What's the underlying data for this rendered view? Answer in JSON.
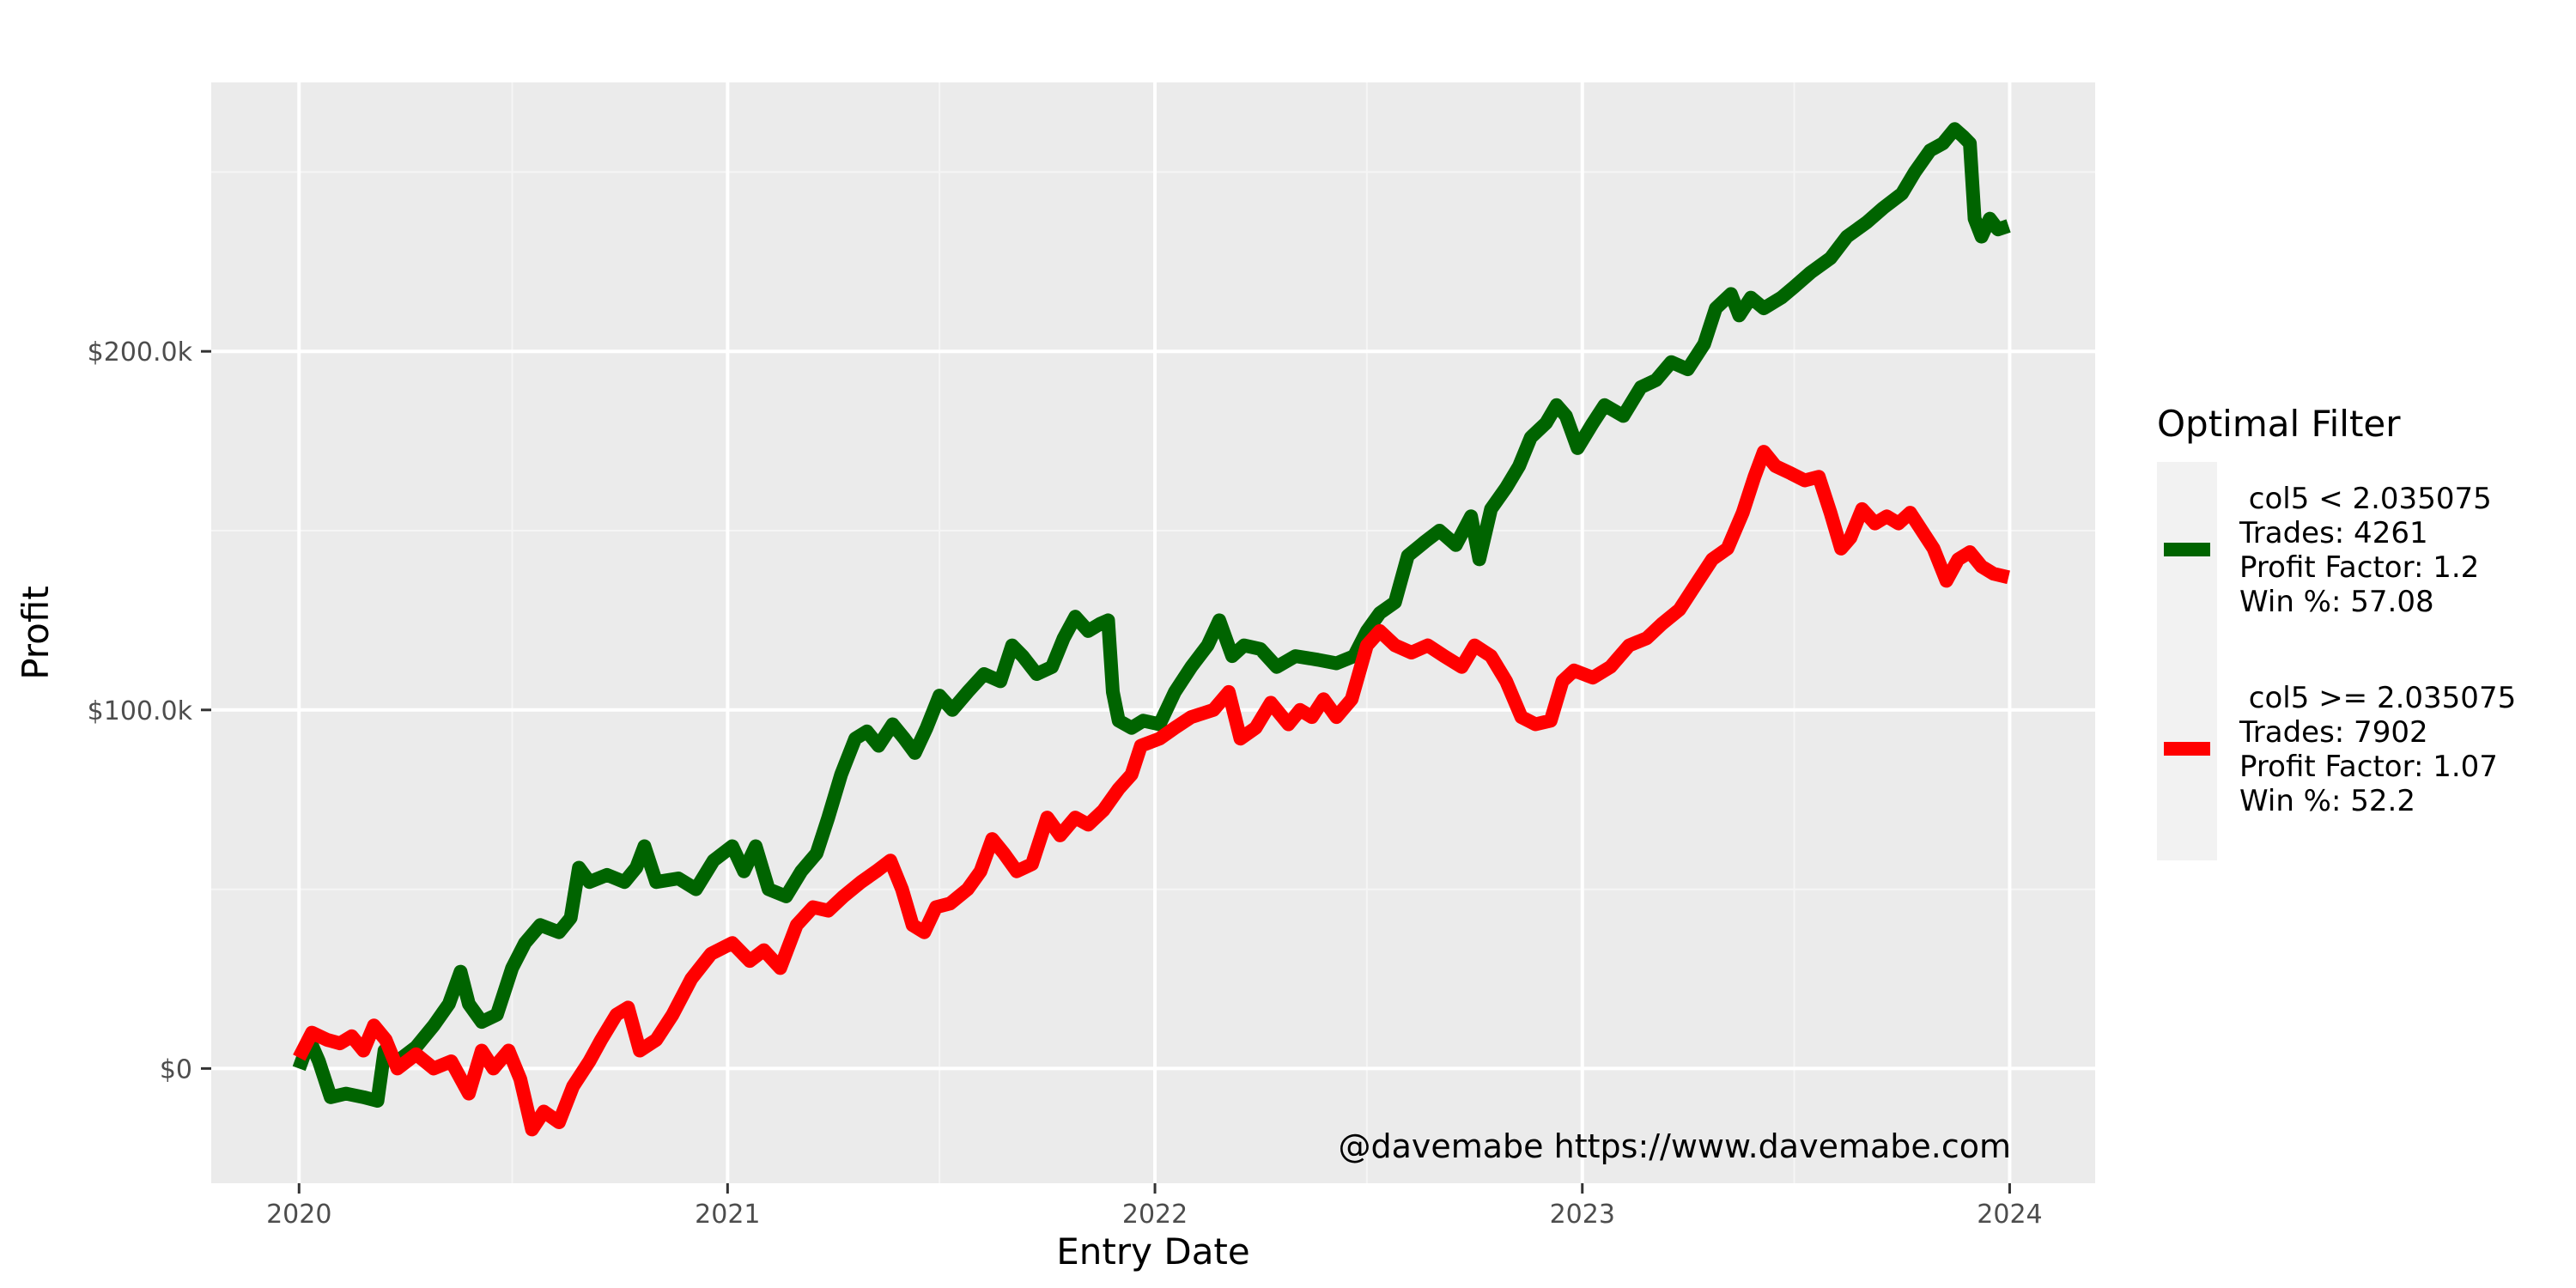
{
  "chart_data": {
    "type": "line",
    "xlabel": "Entry Date",
    "ylabel": "Profit",
    "caption": "@davemabe https://www.davemabe.com",
    "x_range": [
      "2019-10-18",
      "2024-03-14"
    ],
    "y_range": [
      -32000,
      275000
    ],
    "x_ticks": [
      {
        "value": "2020-01-01",
        "label": "2020"
      },
      {
        "value": "2021-01-01",
        "label": "2021"
      },
      {
        "value": "2022-01-01",
        "label": "2022"
      },
      {
        "value": "2023-01-01",
        "label": "2023"
      },
      {
        "value": "2024-01-01",
        "label": "2024"
      }
    ],
    "x_minor_ticks": [
      "2020-07-01",
      "2021-07-01",
      "2022-07-01",
      "2023-07-01"
    ],
    "y_ticks": [
      {
        "value": 0,
        "label": "$0"
      },
      {
        "value": 100000,
        "label": "$100.0k"
      },
      {
        "value": 200000,
        "label": "$200.0k"
      }
    ],
    "y_minor_ticks": [
      50000,
      150000,
      250000
    ],
    "grid": true,
    "legend": {
      "title": "Optimal Filter",
      "placement": "right",
      "entries": [
        {
          "lines": [
            " col5 < 2.035075",
            "Trades: 4261",
            "Profit Factor: 1.2",
            "Win %: 57.08"
          ],
          "color": "#006400"
        },
        {
          "lines": [
            " col5 >= 2.035075",
            "Trades: 7902",
            "Profit Factor: 1.07",
            "Win %: 52.2"
          ],
          "color": "#ff0000"
        }
      ]
    },
    "series": [
      {
        "name": "col5 < 2.035075",
        "color": "#006400",
        "points": [
          [
            "2020-01-01",
            0
          ],
          [
            "2020-01-10",
            8000
          ],
          [
            "2020-01-18",
            2000
          ],
          [
            "2020-01-28",
            -8000
          ],
          [
            "2020-02-10",
            -7000
          ],
          [
            "2020-02-25",
            -8000
          ],
          [
            "2020-03-08",
            -9000
          ],
          [
            "2020-03-14",
            5000
          ],
          [
            "2020-03-25",
            2000
          ],
          [
            "2020-04-10",
            6000
          ],
          [
            "2020-04-25",
            12000
          ],
          [
            "2020-05-08",
            18000
          ],
          [
            "2020-05-18",
            27000
          ],
          [
            "2020-05-25",
            18000
          ],
          [
            "2020-06-05",
            13000
          ],
          [
            "2020-06-18",
            15000
          ],
          [
            "2020-07-01",
            28000
          ],
          [
            "2020-07-12",
            35000
          ],
          [
            "2020-07-25",
            40000
          ],
          [
            "2020-08-10",
            38000
          ],
          [
            "2020-08-20",
            42000
          ],
          [
            "2020-08-27",
            56000
          ],
          [
            "2020-09-05",
            52000
          ],
          [
            "2020-09-20",
            54000
          ],
          [
            "2020-10-05",
            52000
          ],
          [
            "2020-10-15",
            56000
          ],
          [
            "2020-10-22",
            62000
          ],
          [
            "2020-11-01",
            52000
          ],
          [
            "2020-11-20",
            53000
          ],
          [
            "2020-12-05",
            50000
          ],
          [
            "2020-12-20",
            58000
          ],
          [
            "2021-01-05",
            62000
          ],
          [
            "2021-01-15",
            55000
          ],
          [
            "2021-01-25",
            62000
          ],
          [
            "2021-02-05",
            50000
          ],
          [
            "2021-02-20",
            48000
          ],
          [
            "2021-03-05",
            55000
          ],
          [
            "2021-03-18",
            60000
          ],
          [
            "2021-03-28",
            70000
          ],
          [
            "2021-04-08",
            82000
          ],
          [
            "2021-04-20",
            92000
          ],
          [
            "2021-04-30",
            94000
          ],
          [
            "2021-05-10",
            90000
          ],
          [
            "2021-05-22",
            96000
          ],
          [
            "2021-06-01",
            92000
          ],
          [
            "2021-06-10",
            88000
          ],
          [
            "2021-06-20",
            95000
          ],
          [
            "2021-07-01",
            104000
          ],
          [
            "2021-07-12",
            100000
          ],
          [
            "2021-07-25",
            105000
          ],
          [
            "2021-08-08",
            110000
          ],
          [
            "2021-08-22",
            108000
          ],
          [
            "2021-09-01",
            118000
          ],
          [
            "2021-09-10",
            115000
          ],
          [
            "2021-09-22",
            110000
          ],
          [
            "2021-10-05",
            112000
          ],
          [
            "2021-10-15",
            120000
          ],
          [
            "2021-10-25",
            126000
          ],
          [
            "2021-11-05",
            122000
          ],
          [
            "2021-11-15",
            124000
          ],
          [
            "2021-11-22",
            125000
          ],
          [
            "2021-11-26",
            105000
          ],
          [
            "2021-12-01",
            97000
          ],
          [
            "2021-12-12",
            95000
          ],
          [
            "2021-12-22",
            97000
          ],
          [
            "2022-01-05",
            96000
          ],
          [
            "2022-01-18",
            105000
          ],
          [
            "2022-02-01",
            112000
          ],
          [
            "2022-02-15",
            118000
          ],
          [
            "2022-02-25",
            125000
          ],
          [
            "2022-03-08",
            115000
          ],
          [
            "2022-03-18",
            118000
          ],
          [
            "2022-04-01",
            117000
          ],
          [
            "2022-04-15",
            112000
          ],
          [
            "2022-05-01",
            115000
          ],
          [
            "2022-05-20",
            114000
          ],
          [
            "2022-06-05",
            113000
          ],
          [
            "2022-06-20",
            115000
          ],
          [
            "2022-07-01",
            122000
          ],
          [
            "2022-07-12",
            127000
          ],
          [
            "2022-07-25",
            130000
          ],
          [
            "2022-08-05",
            143000
          ],
          [
            "2022-08-20",
            147000
          ],
          [
            "2022-09-01",
            150000
          ],
          [
            "2022-09-15",
            146000
          ],
          [
            "2022-09-28",
            154000
          ],
          [
            "2022-10-05",
            142000
          ],
          [
            "2022-10-15",
            156000
          ],
          [
            "2022-10-28",
            162000
          ],
          [
            "2022-11-08",
            168000
          ],
          [
            "2022-11-18",
            176000
          ],
          [
            "2022-12-01",
            180000
          ],
          [
            "2022-12-10",
            185000
          ],
          [
            "2022-12-18",
            182000
          ],
          [
            "2022-12-28",
            173000
          ],
          [
            "2023-01-10",
            180000
          ],
          [
            "2023-01-20",
            185000
          ],
          [
            "2023-02-05",
            182000
          ],
          [
            "2023-02-20",
            190000
          ],
          [
            "2023-03-05",
            192000
          ],
          [
            "2023-03-18",
            197000
          ],
          [
            "2023-04-01",
            195000
          ],
          [
            "2023-04-15",
            202000
          ],
          [
            "2023-04-25",
            212000
          ],
          [
            "2023-05-08",
            216000
          ],
          [
            "2023-05-15",
            210000
          ],
          [
            "2023-05-25",
            215000
          ],
          [
            "2023-06-05",
            212000
          ],
          [
            "2023-06-20",
            215000
          ],
          [
            "2023-07-01",
            218000
          ],
          [
            "2023-07-15",
            222000
          ],
          [
            "2023-08-01",
            226000
          ],
          [
            "2023-08-15",
            232000
          ],
          [
            "2023-09-01",
            236000
          ],
          [
            "2023-09-15",
            240000
          ],
          [
            "2023-10-01",
            244000
          ],
          [
            "2023-10-12",
            250000
          ],
          [
            "2023-10-25",
            256000
          ],
          [
            "2023-11-05",
            258000
          ],
          [
            "2023-11-15",
            262000
          ],
          [
            "2023-11-22",
            260000
          ],
          [
            "2023-11-28",
            258000
          ],
          [
            "2023-12-02",
            237000
          ],
          [
            "2023-12-08",
            232000
          ],
          [
            "2023-12-15",
            237000
          ],
          [
            "2023-12-22",
            234000
          ],
          [
            "2023-12-31",
            235000
          ]
        ]
      },
      {
        "name": "col5 >= 2.035075",
        "color": "#ff0000",
        "points": [
          [
            "2020-01-01",
            3000
          ],
          [
            "2020-01-12",
            10000
          ],
          [
            "2020-01-25",
            8000
          ],
          [
            "2020-02-05",
            7000
          ],
          [
            "2020-02-15",
            9000
          ],
          [
            "2020-02-25",
            5000
          ],
          [
            "2020-03-05",
            12000
          ],
          [
            "2020-03-15",
            8000
          ],
          [
            "2020-03-25",
            0
          ],
          [
            "2020-04-10",
            4000
          ],
          [
            "2020-04-25",
            0
          ],
          [
            "2020-05-10",
            2000
          ],
          [
            "2020-05-25",
            -7000
          ],
          [
            "2020-06-05",
            5000
          ],
          [
            "2020-06-15",
            0
          ],
          [
            "2020-06-28",
            5000
          ],
          [
            "2020-07-08",
            -3000
          ],
          [
            "2020-07-18",
            -17000
          ],
          [
            "2020-07-28",
            -12000
          ],
          [
            "2020-08-10",
            -15000
          ],
          [
            "2020-08-22",
            -5000
          ],
          [
            "2020-09-05",
            2000
          ],
          [
            "2020-09-15",
            8000
          ],
          [
            "2020-09-28",
            15000
          ],
          [
            "2020-10-08",
            17000
          ],
          [
            "2020-10-18",
            5000
          ],
          [
            "2020-11-01",
            8000
          ],
          [
            "2020-11-15",
            15000
          ],
          [
            "2020-12-01",
            25000
          ],
          [
            "2020-12-18",
            32000
          ],
          [
            "2021-01-05",
            35000
          ],
          [
            "2021-01-20",
            30000
          ],
          [
            "2021-02-01",
            33000
          ],
          [
            "2021-02-15",
            28000
          ],
          [
            "2021-03-01",
            40000
          ],
          [
            "2021-03-15",
            45000
          ],
          [
            "2021-03-28",
            44000
          ],
          [
            "2021-04-10",
            48000
          ],
          [
            "2021-04-25",
            52000
          ],
          [
            "2021-05-08",
            55000
          ],
          [
            "2021-05-20",
            58000
          ],
          [
            "2021-05-30",
            50000
          ],
          [
            "2021-06-08",
            40000
          ],
          [
            "2021-06-18",
            38000
          ],
          [
            "2021-06-28",
            45000
          ],
          [
            "2021-07-10",
            46000
          ],
          [
            "2021-07-25",
            50000
          ],
          [
            "2021-08-05",
            55000
          ],
          [
            "2021-08-15",
            64000
          ],
          [
            "2021-08-25",
            60000
          ],
          [
            "2021-09-05",
            55000
          ],
          [
            "2021-09-18",
            57000
          ],
          [
            "2021-10-01",
            70000
          ],
          [
            "2021-10-12",
            65000
          ],
          [
            "2021-10-25",
            70000
          ],
          [
            "2021-11-05",
            68000
          ],
          [
            "2021-11-18",
            72000
          ],
          [
            "2021-12-01",
            78000
          ],
          [
            "2021-12-12",
            82000
          ],
          [
            "2021-12-20",
            90000
          ],
          [
            "2022-01-05",
            92000
          ],
          [
            "2022-01-18",
            95000
          ],
          [
            "2022-02-01",
            98000
          ],
          [
            "2022-02-20",
            100000
          ],
          [
            "2022-03-05",
            105000
          ],
          [
            "2022-03-15",
            92000
          ],
          [
            "2022-03-28",
            95000
          ],
          [
            "2022-04-10",
            102000
          ],
          [
            "2022-04-25",
            96000
          ],
          [
            "2022-05-05",
            100000
          ],
          [
            "2022-05-15",
            98000
          ],
          [
            "2022-05-25",
            103000
          ],
          [
            "2022-06-05",
            98000
          ],
          [
            "2022-06-18",
            103000
          ],
          [
            "2022-07-01",
            118000
          ],
          [
            "2022-07-12",
            122000
          ],
          [
            "2022-07-25",
            118000
          ],
          [
            "2022-08-08",
            116000
          ],
          [
            "2022-08-22",
            118000
          ],
          [
            "2022-09-05",
            115000
          ],
          [
            "2022-09-20",
            112000
          ],
          [
            "2022-10-01",
            118000
          ],
          [
            "2022-10-15",
            115000
          ],
          [
            "2022-10-28",
            108000
          ],
          [
            "2022-11-10",
            98000
          ],
          [
            "2022-11-22",
            96000
          ],
          [
            "2022-12-05",
            97000
          ],
          [
            "2022-12-15",
            108000
          ],
          [
            "2022-12-25",
            111000
          ],
          [
            "2023-01-10",
            109000
          ],
          [
            "2023-01-25",
            112000
          ],
          [
            "2023-02-10",
            118000
          ],
          [
            "2023-02-25",
            120000
          ],
          [
            "2023-03-10",
            124000
          ],
          [
            "2023-03-25",
            128000
          ],
          [
            "2023-04-10",
            136000
          ],
          [
            "2023-04-22",
            142000
          ],
          [
            "2023-05-05",
            145000
          ],
          [
            "2023-05-18",
            155000
          ],
          [
            "2023-05-28",
            165000
          ],
          [
            "2023-06-05",
            172000
          ],
          [
            "2023-06-15",
            168000
          ],
          [
            "2023-06-28",
            166000
          ],
          [
            "2023-07-10",
            164000
          ],
          [
            "2023-07-22",
            165000
          ],
          [
            "2023-08-01",
            155000
          ],
          [
            "2023-08-10",
            145000
          ],
          [
            "2023-08-18",
            148000
          ],
          [
            "2023-08-28",
            156000
          ],
          [
            "2023-09-08",
            152000
          ],
          [
            "2023-09-18",
            154000
          ],
          [
            "2023-09-28",
            152000
          ],
          [
            "2023-10-08",
            155000
          ],
          [
            "2023-10-18",
            150000
          ],
          [
            "2023-10-28",
            145000
          ],
          [
            "2023-11-08",
            136000
          ],
          [
            "2023-11-18",
            142000
          ],
          [
            "2023-11-28",
            144000
          ],
          [
            "2023-12-08",
            140000
          ],
          [
            "2023-12-18",
            138000
          ],
          [
            "2023-12-31",
            137000
          ]
        ]
      }
    ]
  }
}
